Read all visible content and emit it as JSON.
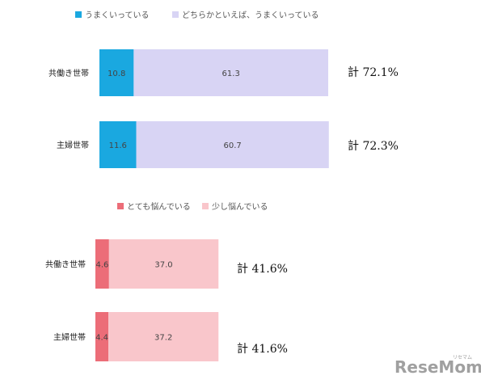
{
  "chart_data": [
    {
      "type": "bar",
      "orientation": "horizontal",
      "stacked": true,
      "categories": [
        "共働き世帯",
        "主婦世帯"
      ],
      "series": [
        {
          "name": "うまくいっている",
          "values": [
            10.8,
            11.6
          ],
          "color": "#1aa8e0"
        },
        {
          "name": "どちらかといえば、うまくいっている",
          "values": [
            61.3,
            60.7
          ],
          "color": "#d8d4f4"
        }
      ],
      "totals": [
        "計 72.1%",
        "計 72.3%"
      ],
      "legend_position": "top"
    },
    {
      "type": "bar",
      "orientation": "horizontal",
      "stacked": true,
      "categories": [
        "共働き世帯",
        "主婦世帯"
      ],
      "series": [
        {
          "name": "とても悩んでいる",
          "values": [
            4.6,
            4.4
          ],
          "color": "#ec6d78"
        },
        {
          "name": "少し悩んでいる",
          "values": [
            37.0,
            37.2
          ],
          "color": "#f9c6cb"
        }
      ],
      "totals": [
        "計 41.6%",
        "計 41.6%"
      ],
      "legend_position": "top"
    }
  ],
  "watermark": {
    "text": "ReseMom",
    "subtext": "リセマム"
  }
}
